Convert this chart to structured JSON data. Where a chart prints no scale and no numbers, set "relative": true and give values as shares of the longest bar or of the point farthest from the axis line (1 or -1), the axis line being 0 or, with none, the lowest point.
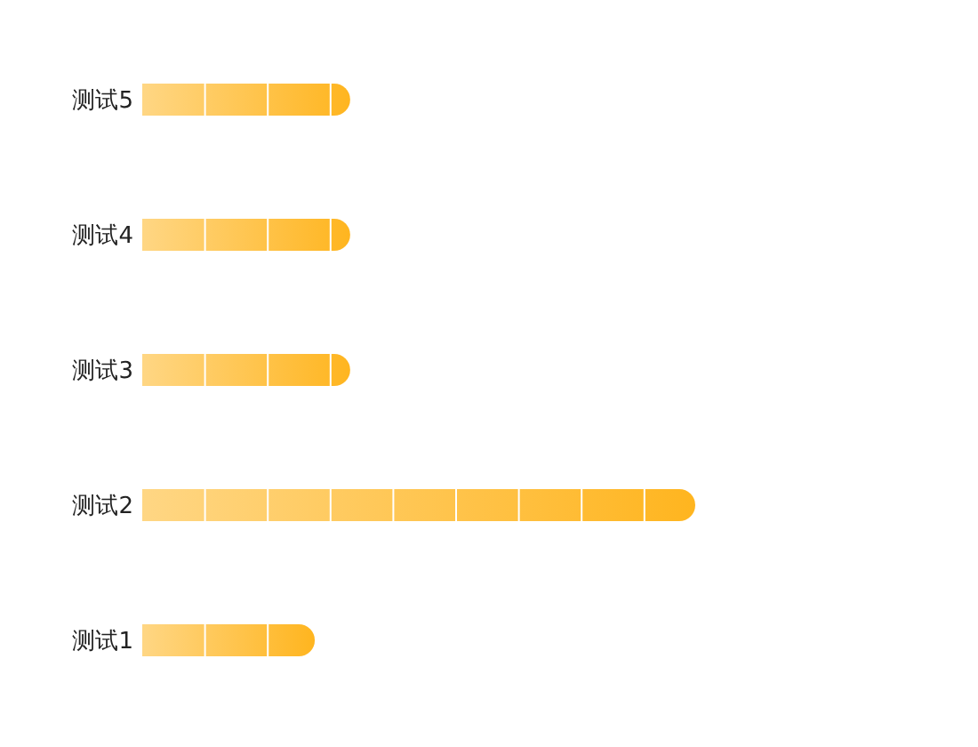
{
  "chart_data": {
    "type": "bar",
    "orientation": "horizontal",
    "relative": true,
    "categories": [
      "测试5",
      "测试4",
      "测试3",
      "测试2",
      "测试1"
    ],
    "values": [
      0.376,
      0.376,
      0.376,
      1,
      0.312
    ],
    "color": "#ffb51f"
  }
}
